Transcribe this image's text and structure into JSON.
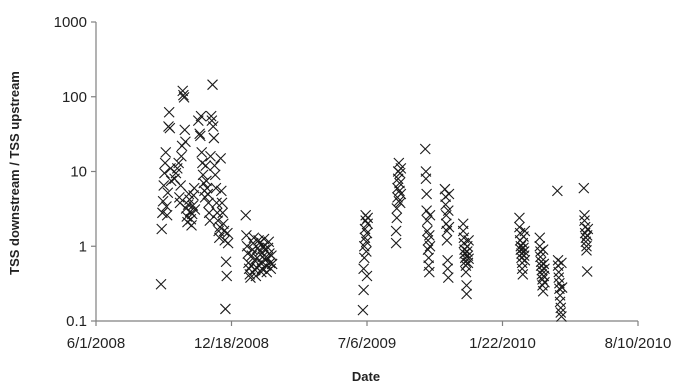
{
  "chart_data": {
    "type": "scatter",
    "title": "",
    "xlabel": "Date",
    "ylabel": "TSS downstream / TSS upstream",
    "x_scale": "date",
    "y_scale": "log",
    "xlim": [
      "2008-06-01",
      "2010-08-10"
    ],
    "ylim": [
      0.1,
      1000
    ],
    "x_ticks": [
      "6/1/2008",
      "12/18/2008",
      "7/6/2009",
      "1/22/2010",
      "8/10/2010"
    ],
    "y_ticks": [
      "0.1",
      "1",
      "10",
      "100",
      "1000"
    ],
    "grid": false,
    "legend": "none",
    "marker": "x",
    "series": [
      {
        "color": "#1a1a1a",
        "points": [
          [
            "2008-09-05",
            0.31
          ],
          [
            "2008-09-06",
            1.7
          ],
          [
            "2008-09-07",
            2.8
          ],
          [
            "2008-09-08",
            4.0
          ],
          [
            "2008-09-09",
            6.5
          ],
          [
            "2008-09-10",
            9.5
          ],
          [
            "2008-09-11",
            13
          ],
          [
            "2008-09-12",
            18
          ],
          [
            "2008-09-13",
            3.4
          ],
          [
            "2008-09-14",
            2.6
          ],
          [
            "2008-09-15",
            5.2
          ],
          [
            "2008-09-16",
            40
          ],
          [
            "2008-09-17",
            62
          ],
          [
            "2008-09-18",
            38
          ],
          [
            "2008-09-19",
            11
          ],
          [
            "2008-09-20",
            7.5
          ],
          [
            "2008-09-25",
            8
          ],
          [
            "2008-09-27",
            9.5
          ],
          [
            "2008-09-29",
            11
          ],
          [
            "2008-10-01",
            13
          ],
          [
            "2008-10-02",
            4.5
          ],
          [
            "2008-10-03",
            3.8
          ],
          [
            "2008-10-04",
            6.5
          ],
          [
            "2008-10-05",
            16
          ],
          [
            "2008-10-06",
            22
          ],
          [
            "2008-10-07",
            120
          ],
          [
            "2008-10-08",
            105
          ],
          [
            "2008-10-09",
            98
          ],
          [
            "2008-10-10",
            36
          ],
          [
            "2008-10-11",
            25
          ],
          [
            "2008-10-12",
            3.2
          ],
          [
            "2008-10-13",
            2.5
          ],
          [
            "2008-10-14",
            2.1
          ],
          [
            "2008-10-15",
            3.6
          ],
          [
            "2008-10-16",
            5
          ],
          [
            "2008-10-17",
            4.2
          ],
          [
            "2008-10-18",
            2.9
          ],
          [
            "2008-10-19",
            2.3
          ],
          [
            "2008-10-20",
            1.9
          ],
          [
            "2008-10-21",
            2.7
          ],
          [
            "2008-10-22",
            3.5
          ],
          [
            "2008-10-23",
            4.8
          ],
          [
            "2008-10-24",
            6
          ],
          [
            "2008-10-25",
            3.1
          ],
          [
            "2008-10-30",
            48
          ],
          [
            "2008-11-01",
            32
          ],
          [
            "2008-11-02",
            30
          ],
          [
            "2008-11-03",
            55
          ],
          [
            "2008-11-04",
            18
          ],
          [
            "2008-11-05",
            13
          ],
          [
            "2008-11-06",
            9
          ],
          [
            "2008-11-07",
            7
          ],
          [
            "2008-11-08",
            5.5
          ],
          [
            "2008-11-09",
            4.5
          ],
          [
            "2008-11-10",
            12
          ],
          [
            "2008-11-11",
            7.5
          ],
          [
            "2008-11-12",
            6
          ],
          [
            "2008-11-13",
            5
          ],
          [
            "2008-11-14",
            3.8
          ],
          [
            "2008-11-15",
            2.8
          ],
          [
            "2008-11-16",
            2.2
          ],
          [
            "2008-11-17",
            16
          ],
          [
            "2008-11-18",
            55
          ],
          [
            "2008-11-19",
            48
          ],
          [
            "2008-11-20",
            145
          ],
          [
            "2008-11-21",
            40
          ],
          [
            "2008-11-22",
            28
          ],
          [
            "2008-11-23",
            12
          ],
          [
            "2008-11-24",
            9
          ],
          [
            "2008-11-25",
            6
          ],
          [
            "2008-11-26",
            3.8
          ],
          [
            "2008-11-27",
            2.8
          ],
          [
            "2008-11-28",
            2.2
          ],
          [
            "2008-11-29",
            1.6
          ],
          [
            "2008-11-30",
            1.3
          ],
          [
            "2008-12-01",
            1.8
          ],
          [
            "2008-12-02",
            15
          ],
          [
            "2008-12-03",
            5.5
          ],
          [
            "2008-12-04",
            3.8
          ],
          [
            "2008-12-05",
            2.8
          ],
          [
            "2008-12-06",
            2.0
          ],
          [
            "2008-12-07",
            1.6
          ],
          [
            "2008-12-08",
            1.2
          ],
          [
            "2008-12-09",
            0.145
          ],
          [
            "2008-12-10",
            0.62
          ],
          [
            "2008-12-11",
            0.4
          ],
          [
            "2008-12-12",
            1.5
          ],
          [
            "2008-12-13",
            1.1
          ],
          [
            "2009-01-08",
            2.6
          ],
          [
            "2009-01-09",
            1.4
          ],
          [
            "2009-01-10",
            1.0
          ],
          [
            "2009-01-11",
            0.8
          ],
          [
            "2009-01-12",
            0.6
          ],
          [
            "2009-01-13",
            0.5
          ],
          [
            "2009-01-14",
            0.42
          ],
          [
            "2009-01-15",
            0.38
          ],
          [
            "2009-01-16",
            0.55
          ],
          [
            "2009-01-17",
            0.75
          ],
          [
            "2009-01-18",
            0.9
          ],
          [
            "2009-01-19",
            1.1
          ],
          [
            "2009-01-20",
            1.3
          ],
          [
            "2009-01-21",
            0.65
          ],
          [
            "2009-01-22",
            0.48
          ],
          [
            "2009-01-23",
            0.4
          ],
          [
            "2009-01-24",
            0.52
          ],
          [
            "2009-01-25",
            0.7
          ],
          [
            "2009-01-26",
            0.95
          ],
          [
            "2009-01-27",
            1.2
          ],
          [
            "2009-01-28",
            1.1
          ],
          [
            "2009-01-29",
            0.85
          ],
          [
            "2009-01-30",
            0.6
          ],
          [
            "2009-01-31",
            0.45
          ],
          [
            "2009-02-01",
            0.5
          ],
          [
            "2009-02-02",
            0.72
          ],
          [
            "2009-02-03",
            1.0
          ],
          [
            "2009-02-04",
            1.25
          ],
          [
            "2009-02-05",
            0.9
          ],
          [
            "2009-02-06",
            0.65
          ],
          [
            "2009-02-07",
            0.55
          ],
          [
            "2009-02-08",
            0.45
          ],
          [
            "2009-02-09",
            0.7
          ],
          [
            "2009-02-10",
            0.95
          ],
          [
            "2009-02-11",
            1.15
          ],
          [
            "2009-02-12",
            0.8
          ],
          [
            "2009-02-13",
            0.6
          ],
          [
            "2009-02-14",
            0.5
          ],
          [
            "2009-02-15",
            0.75
          ],
          [
            "2009-02-16",
            0.58
          ],
          [
            "2009-06-30",
            0.14
          ],
          [
            "2009-07-01",
            0.26
          ],
          [
            "2009-07-01",
            0.5
          ],
          [
            "2009-07-02",
            0.7
          ],
          [
            "2009-07-02",
            1.0
          ],
          [
            "2009-07-03",
            1.3
          ],
          [
            "2009-07-03",
            1.7
          ],
          [
            "2009-07-04",
            2.2
          ],
          [
            "2009-07-04",
            2.6
          ],
          [
            "2009-07-05",
            0.85
          ],
          [
            "2009-07-05",
            1.15
          ],
          [
            "2009-07-06",
            1.5
          ],
          [
            "2009-07-06",
            0.4
          ],
          [
            "2009-07-07",
            2.0
          ],
          [
            "2009-07-07",
            2.4
          ],
          [
            "2009-08-18",
            1.1
          ],
          [
            "2009-08-18",
            1.6
          ],
          [
            "2009-08-19",
            2.4
          ],
          [
            "2009-08-19",
            3.2
          ],
          [
            "2009-08-20",
            4.5
          ],
          [
            "2009-08-20",
            6
          ],
          [
            "2009-08-21",
            8
          ],
          [
            "2009-08-21",
            10
          ],
          [
            "2009-08-22",
            13
          ],
          [
            "2009-08-22",
            4
          ],
          [
            "2009-08-23",
            5.5
          ],
          [
            "2009-08-23",
            7
          ],
          [
            "2009-08-24",
            3.8
          ],
          [
            "2009-08-24",
            9.5
          ],
          [
            "2009-08-25",
            11
          ],
          [
            "2009-08-25",
            5
          ],
          [
            "2009-09-30",
            20
          ],
          [
            "2009-10-01",
            10
          ],
          [
            "2009-10-01",
            8
          ],
          [
            "2009-10-02",
            5
          ],
          [
            "2009-10-02",
            3
          ],
          [
            "2009-10-03",
            2.2
          ],
          [
            "2009-10-03",
            1.6
          ],
          [
            "2009-10-04",
            1.2
          ],
          [
            "2009-10-04",
            0.9
          ],
          [
            "2009-10-05",
            0.7
          ],
          [
            "2009-10-05",
            0.55
          ],
          [
            "2009-10-06",
            0.45
          ],
          [
            "2009-10-06",
            1.4
          ],
          [
            "2009-10-07",
            2.6
          ],
          [
            "2009-10-07",
            1.0
          ],
          [
            "2009-10-29",
            5.8
          ],
          [
            "2009-10-30",
            4.6
          ],
          [
            "2009-10-30",
            3.6
          ],
          [
            "2009-10-31",
            2.6
          ],
          [
            "2009-10-31",
            2.0
          ],
          [
            "2009-11-01",
            1.6
          ],
          [
            "2009-11-01",
            1.2
          ],
          [
            "2009-11-02",
            0.65
          ],
          [
            "2009-11-02",
            0.5
          ],
          [
            "2009-11-03",
            0.38
          ],
          [
            "2009-11-03",
            3.0
          ],
          [
            "2009-11-04",
            5.0
          ],
          [
            "2009-11-04",
            1.8
          ],
          [
            "2009-11-25",
            2.0
          ],
          [
            "2009-11-25",
            1.6
          ],
          [
            "2009-11-26",
            1.3
          ],
          [
            "2009-11-26",
            1.1
          ],
          [
            "2009-11-27",
            0.9
          ],
          [
            "2009-11-27",
            0.8
          ],
          [
            "2009-11-28",
            0.7
          ],
          [
            "2009-11-28",
            0.62
          ],
          [
            "2009-11-29",
            0.55
          ],
          [
            "2009-11-29",
            0.45
          ],
          [
            "2009-11-30",
            0.3
          ],
          [
            "2009-11-30",
            0.23
          ],
          [
            "2009-12-01",
            0.85
          ],
          [
            "2009-12-01",
            1.0
          ],
          [
            "2009-12-02",
            0.75
          ],
          [
            "2009-12-02",
            0.6
          ],
          [
            "2009-12-03",
            1.2
          ],
          [
            "2009-12-03",
            0.68
          ],
          [
            "2010-02-16",
            2.4
          ],
          [
            "2010-02-16",
            1.8
          ],
          [
            "2010-02-17",
            1.5
          ],
          [
            "2010-02-17",
            1.2
          ],
          [
            "2010-02-18",
            1.0
          ],
          [
            "2010-02-18",
            0.9
          ],
          [
            "2010-02-19",
            0.8
          ],
          [
            "2010-02-19",
            0.7
          ],
          [
            "2010-02-20",
            0.6
          ],
          [
            "2010-02-20",
            0.5
          ],
          [
            "2010-02-21",
            0.42
          ],
          [
            "2010-02-21",
            1.1
          ],
          [
            "2010-02-22",
            1.35
          ],
          [
            "2010-02-22",
            0.95
          ],
          [
            "2010-02-23",
            0.85
          ],
          [
            "2010-02-23",
            0.75
          ],
          [
            "2010-02-24",
            1.6
          ],
          [
            "2010-02-24",
            0.65
          ],
          [
            "2010-03-18",
            1.3
          ],
          [
            "2010-03-18",
            1.0
          ],
          [
            "2010-03-19",
            0.85
          ],
          [
            "2010-03-19",
            0.72
          ],
          [
            "2010-03-20",
            0.62
          ],
          [
            "2010-03-20",
            0.55
          ],
          [
            "2010-03-21",
            0.48
          ],
          [
            "2010-03-21",
            0.42
          ],
          [
            "2010-03-22",
            0.36
          ],
          [
            "2010-03-22",
            0.3
          ],
          [
            "2010-03-23",
            0.25
          ],
          [
            "2010-03-23",
            0.9
          ],
          [
            "2010-03-24",
            0.58
          ],
          [
            "2010-03-24",
            0.4
          ],
          [
            "2010-03-25",
            0.5
          ],
          [
            "2010-03-25",
            0.33
          ],
          [
            "2010-04-13",
            5.5
          ],
          [
            "2010-04-14",
            0.65
          ],
          [
            "2010-04-14",
            0.55
          ],
          [
            "2010-04-15",
            0.45
          ],
          [
            "2010-04-15",
            0.38
          ],
          [
            "2010-04-16",
            0.32
          ],
          [
            "2010-04-16",
            0.27
          ],
          [
            "2010-04-17",
            0.22
          ],
          [
            "2010-04-17",
            0.18
          ],
          [
            "2010-04-18",
            0.15
          ],
          [
            "2010-04-18",
            0.13
          ],
          [
            "2010-04-19",
            0.115
          ],
          [
            "2010-04-19",
            0.6
          ],
          [
            "2010-04-20",
            0.28
          ],
          [
            "2010-05-22",
            6.0
          ],
          [
            "2010-05-23",
            2.6
          ],
          [
            "2010-05-23",
            2.2
          ],
          [
            "2010-05-24",
            1.8
          ],
          [
            "2010-05-24",
            1.5
          ],
          [
            "2010-05-25",
            1.3
          ],
          [
            "2010-05-25",
            1.15
          ],
          [
            "2010-05-26",
            1.0
          ],
          [
            "2010-05-26",
            0.88
          ],
          [
            "2010-05-27",
            0.46
          ],
          [
            "2010-05-27",
            1.4
          ],
          [
            "2010-05-28",
            1.7
          ]
        ]
      }
    ]
  }
}
